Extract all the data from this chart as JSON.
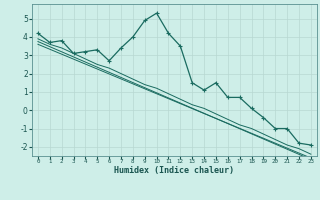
{
  "xlabel": "Humidex (Indice chaleur)",
  "bg_color": "#ceeee8",
  "grid_color": "#b8d8d2",
  "line_color": "#1a6b60",
  "x_main": [
    0,
    1,
    2,
    3,
    4,
    5,
    6,
    7,
    8,
    9,
    10,
    11,
    12,
    13,
    14,
    15,
    16,
    17,
    18,
    19,
    20,
    21,
    22,
    23
  ],
  "y_main": [
    4.2,
    3.7,
    3.8,
    3.1,
    3.2,
    3.3,
    2.7,
    3.4,
    4.0,
    4.9,
    5.3,
    4.2,
    3.5,
    1.5,
    1.1,
    1.5,
    0.7,
    0.7,
    0.1,
    -0.4,
    -1.0,
    -1.0,
    -1.8,
    -1.9
  ],
  "y_reg1": [
    3.9,
    3.6,
    3.4,
    3.1,
    2.8,
    2.5,
    2.3,
    2.0,
    1.7,
    1.4,
    1.2,
    0.9,
    0.6,
    0.3,
    0.1,
    -0.2,
    -0.5,
    -0.8,
    -1.0,
    -1.3,
    -1.6,
    -1.9,
    -2.1,
    -2.4
  ],
  "y_reg2": [
    3.75,
    3.47,
    3.19,
    2.91,
    2.63,
    2.35,
    2.07,
    1.79,
    1.51,
    1.23,
    0.95,
    0.67,
    0.39,
    0.11,
    -0.17,
    -0.45,
    -0.73,
    -1.01,
    -1.29,
    -1.57,
    -1.85,
    -2.13,
    -2.41,
    -2.69
  ],
  "y_reg3": [
    3.6,
    3.33,
    3.06,
    2.79,
    2.52,
    2.25,
    1.98,
    1.71,
    1.44,
    1.17,
    0.9,
    0.63,
    0.36,
    0.09,
    -0.18,
    -0.45,
    -0.72,
    -0.99,
    -1.26,
    -1.53,
    -1.8,
    -2.07,
    -2.34,
    -2.61
  ],
  "ylim": [
    -2.5,
    5.8
  ],
  "xlim": [
    -0.5,
    23.5
  ],
  "yticks": [
    -2,
    -1,
    0,
    1,
    2,
    3,
    4,
    5
  ],
  "xticks": [
    0,
    1,
    2,
    3,
    4,
    5,
    6,
    7,
    8,
    9,
    10,
    11,
    12,
    13,
    14,
    15,
    16,
    17,
    18,
    19,
    20,
    21,
    22,
    23
  ]
}
